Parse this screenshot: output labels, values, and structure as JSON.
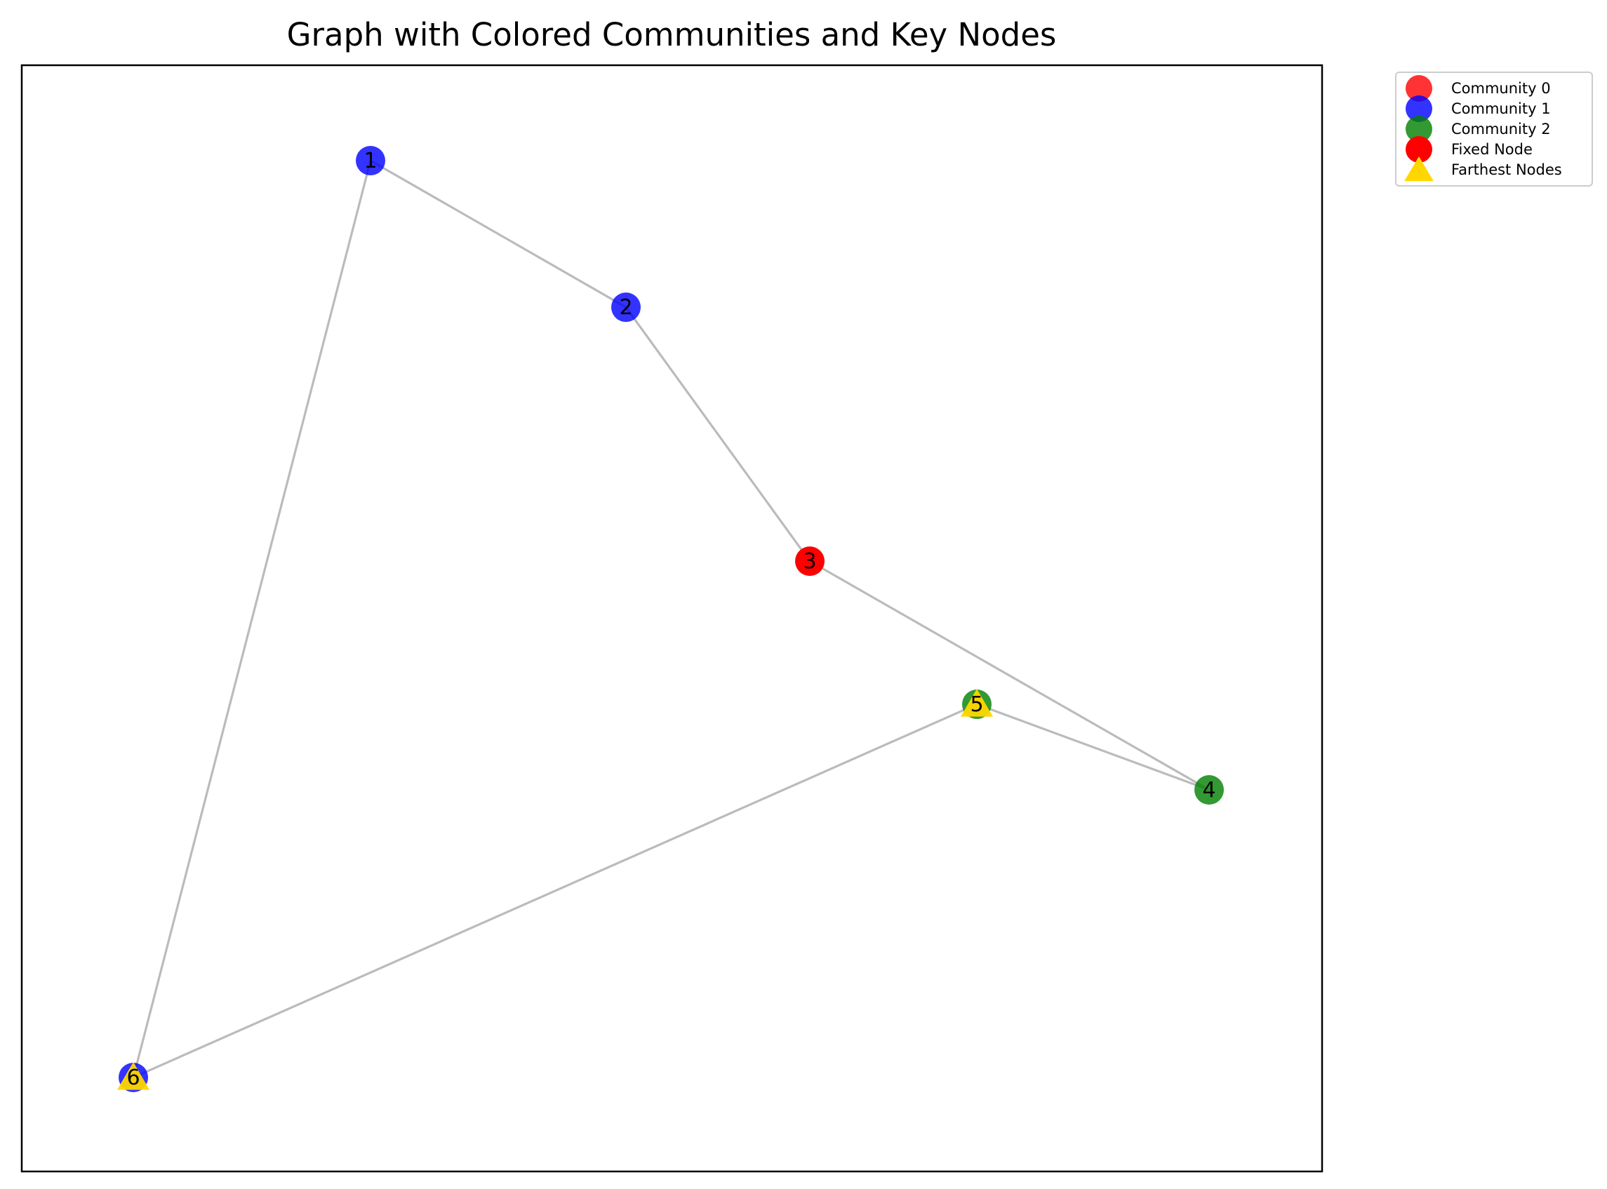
{
  "title": "Graph with Colored Communities and Key Nodes",
  "colors": {
    "community_0": "#ff0000",
    "community_1": "#0000ff",
    "community_2": "#008000",
    "fixed_node": "#ff0000",
    "farthest": "#ffd700",
    "edge": "#bbbbbb"
  },
  "legend": [
    {
      "label": "Community 0",
      "color": "#ff0000",
      "marker": "circle",
      "alpha": 0.8
    },
    {
      "label": "Community 1",
      "color": "#0000ff",
      "marker": "circle",
      "alpha": 0.8
    },
    {
      "label": "Community 2",
      "color": "#008000",
      "marker": "circle",
      "alpha": 0.8
    },
    {
      "label": "Fixed Node",
      "color": "#ff0000",
      "marker": "circle",
      "alpha": 1.0
    },
    {
      "label": "Farthest Nodes",
      "color": "#ffd700",
      "marker": "triangle",
      "alpha": 1.0
    }
  ],
  "chart_data": {
    "type": "network",
    "title": "Graph with Colored Communities and Key Nodes",
    "nodes": [
      {
        "id": "1",
        "label": "1",
        "community": 1
      },
      {
        "id": "2",
        "label": "2",
        "community": 1
      },
      {
        "id": "3",
        "label": "3",
        "community": 0,
        "fixed": true
      },
      {
        "id": "4",
        "label": "4",
        "community": 2
      },
      {
        "id": "5",
        "label": "5",
        "community": 2,
        "farthest": true
      },
      {
        "id": "6",
        "label": "6",
        "community": 1,
        "farthest": true
      }
    ],
    "edges": [
      [
        "1",
        "2"
      ],
      [
        "2",
        "3"
      ],
      [
        "3",
        "4"
      ],
      [
        "4",
        "5"
      ],
      [
        "5",
        "6"
      ],
      [
        "6",
        "1"
      ]
    ],
    "legend_position": "outside top-right",
    "axes_visible": false
  }
}
